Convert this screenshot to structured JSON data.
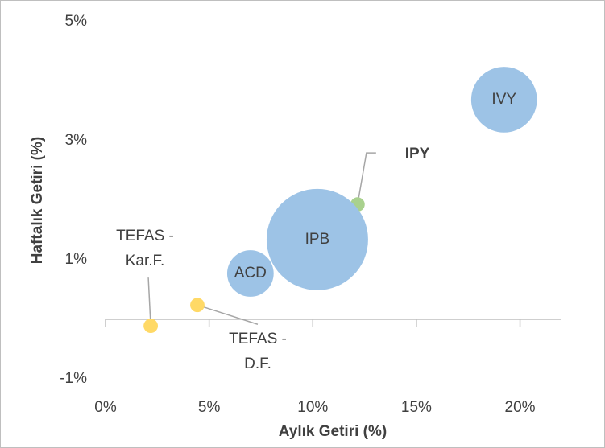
{
  "chart_data": {
    "type": "bubble",
    "x_label": "Aylık Getiri (%)",
    "y_label": "Haftalık Getiri (%)",
    "xlim": [
      0,
      22
    ],
    "ylim": [
      -1,
      5
    ],
    "xticks": [
      {
        "value": 0,
        "label": "0%"
      },
      {
        "value": 5,
        "label": "5%"
      },
      {
        "value": 10,
        "label": "10%"
      },
      {
        "value": 15,
        "label": "15%"
      },
      {
        "value": 20,
        "label": "20%"
      }
    ],
    "yticks": [
      {
        "value": -1,
        "label": "-1%"
      },
      {
        "value": 1,
        "label": "1%"
      },
      {
        "value": 3,
        "label": "3%"
      },
      {
        "value": 5,
        "label": "5%"
      }
    ],
    "points": [
      {
        "label": [
          "IVY"
        ],
        "x": 19.23,
        "y": 3.69,
        "size": 42,
        "color": "#9dc3e6"
      },
      {
        "label": [
          "IPY"
        ],
        "x": 12.16,
        "y": 1.93,
        "size": 2,
        "color": "#a9d18e"
      },
      {
        "label": [
          "IPB"
        ],
        "x": 10.22,
        "y": 1.34,
        "size": 100,
        "color": "#9dc3e6"
      },
      {
        "label": [
          "ACD"
        ],
        "x": 6.99,
        "y": 0.77,
        "size": 21,
        "color": "#9dc3e6"
      },
      {
        "label": [
          "TEFAS -",
          "D.F."
        ],
        "x": 4.43,
        "y": 0.24,
        "size": 2,
        "color": "#ffd966"
      },
      {
        "label": [
          "TEFAS -",
          "Kar.F."
        ],
        "x": 2.18,
        "y": -0.11,
        "size": 2,
        "color": "#ffd966"
      }
    ]
  }
}
